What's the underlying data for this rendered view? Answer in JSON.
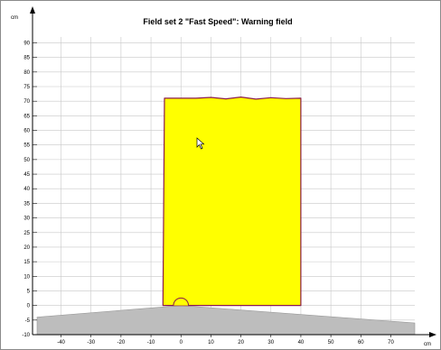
{
  "title": "Field set 2 \"Fast Speed\": Warning field",
  "axes": {
    "x_unit": "cm",
    "y_unit": "cm",
    "x_ticks": [
      "-40",
      "-30",
      "-20",
      "-10",
      "0",
      "10",
      "20",
      "30",
      "40",
      "50",
      "60",
      "70"
    ],
    "y_ticks": [
      "-10",
      "-5",
      "0",
      "5",
      "10",
      "15",
      "20",
      "25",
      "30",
      "35",
      "40",
      "45",
      "50",
      "55",
      "60",
      "65",
      "70",
      "75",
      "80",
      "85",
      "90"
    ]
  },
  "chart_data": {
    "type": "area",
    "title": "Field set 2 \"Fast Speed\": Warning field",
    "xlabel": "cm",
    "ylabel": "cm",
    "xlim": [
      -48,
      78
    ],
    "ylim": [
      -10,
      92
    ],
    "grid": true,
    "series": [
      {
        "x": [
          -6,
          -5.5,
          0,
          5,
          10,
          15,
          20,
          25,
          30,
          35,
          40,
          40,
          40
        ],
        "y": [
          0,
          71,
          71,
          71,
          71.3,
          70.8,
          71.4,
          70.7,
          71.2,
          70.9,
          71,
          35,
          0
        ]
      }
    ],
    "sensor_blind_zone_y_at": {
      "x_left": -48,
      "y_left": -4,
      "x_apex": 0,
      "y_apex": 0,
      "x_right": 78,
      "y_right": -6
    },
    "sensor_bump": {
      "x_center": 0,
      "radius": 2.5
    }
  },
  "colors": {
    "field_fill": "#ffff00",
    "field_outline": "#8b1a4a",
    "grid": "#c8c8c8",
    "blind_zone": "#bdbdbd",
    "axis": "#000000"
  },
  "cursor": "mouse-pointer-icon"
}
